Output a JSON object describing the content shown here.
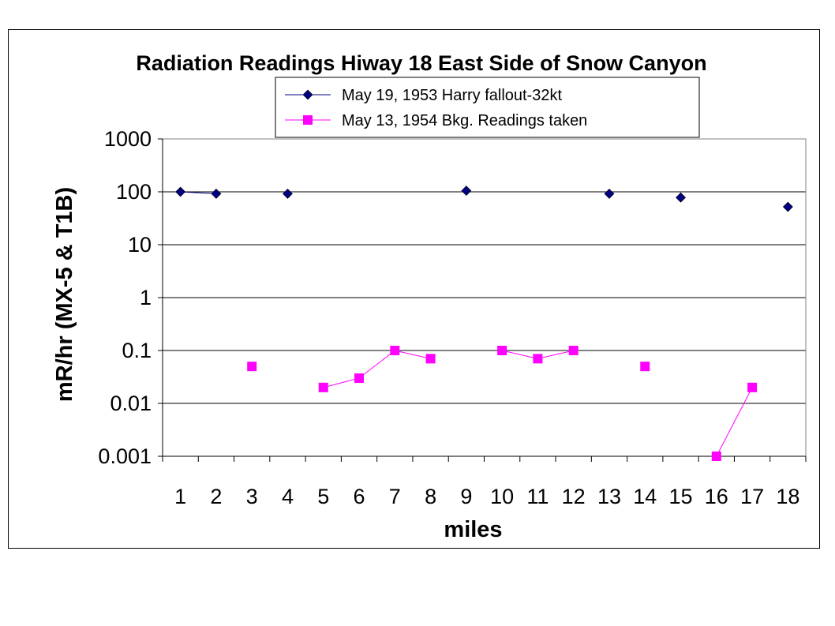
{
  "chart_data": {
    "type": "line",
    "title": "Radiation Readings Hiway 18 East Side of Snow Canyon",
    "xlabel": "miles",
    "ylabel": "mR/hr (MX-5 & T1B)",
    "yscale": "log",
    "ylim": [
      0.001,
      1000
    ],
    "yticks": [
      "1000",
      "100",
      "10",
      "1",
      "0.1",
      "0.01",
      "0.001"
    ],
    "ytick_values": [
      1000,
      100,
      10,
      1,
      0.1,
      0.01,
      0.001
    ],
    "categories": [
      "1",
      "2",
      "3",
      "4",
      "5",
      "6",
      "7",
      "8",
      "9",
      "10",
      "11",
      "12",
      "13",
      "14",
      "15",
      "16",
      "17",
      "18"
    ],
    "grid": true,
    "legend_position": "top",
    "series": [
      {
        "name": "May 19, 1953 Harry fallout-32kt",
        "color": "#000080",
        "marker": "diamond",
        "values": [
          100,
          92,
          null,
          92,
          null,
          null,
          null,
          null,
          105,
          null,
          null,
          null,
          92,
          null,
          78,
          null,
          null,
          52
        ]
      },
      {
        "name": "May 13, 1954 Bkg. Readings taken",
        "color": "#ff00ff",
        "marker": "square",
        "values": [
          null,
          null,
          0.05,
          null,
          0.02,
          0.03,
          0.1,
          0.07,
          null,
          0.1,
          0.07,
          0.1,
          null,
          0.05,
          null,
          0.001,
          0.02,
          null
        ]
      }
    ]
  }
}
